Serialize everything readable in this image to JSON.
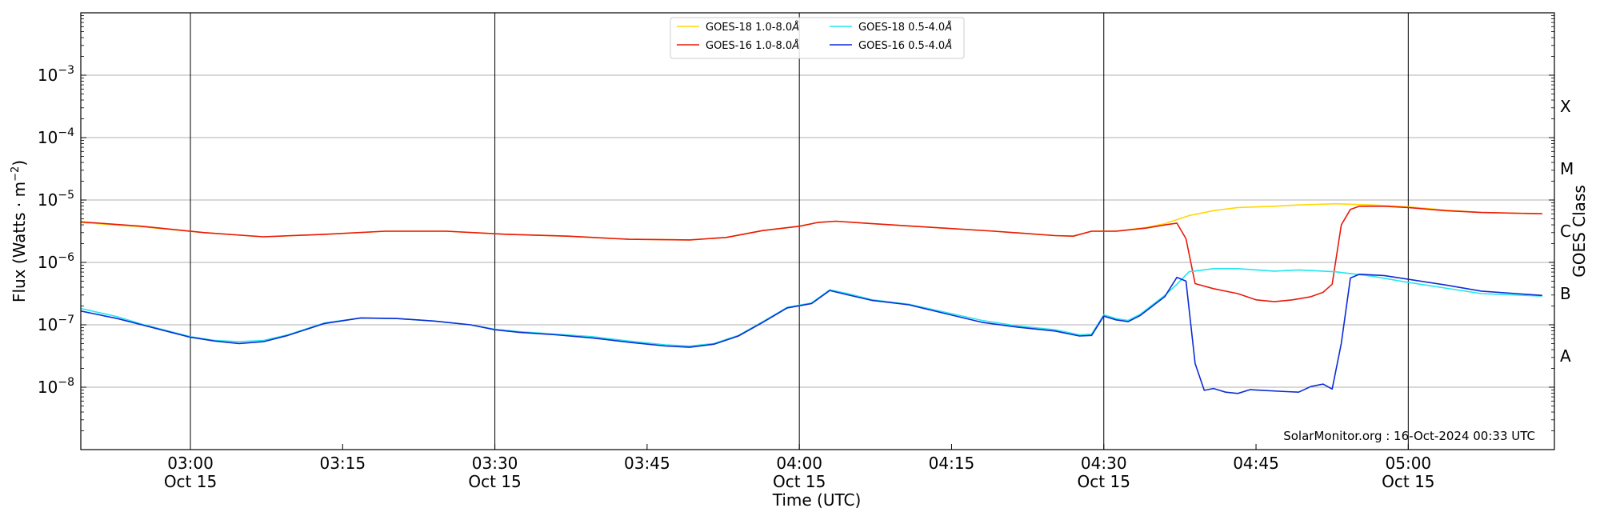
{
  "chart_data": {
    "type": "line",
    "title": "",
    "xlabel": "Time (UTC)",
    "ylabel": "Flux (Watts · m",
    "ylabel_superscript": "−2",
    "ylabel_close": ")",
    "y2label": "GOES Class",
    "yscale": "log",
    "x_unit": "minutes after 02:42 UTC, Oct 15",
    "xlim": [
      0,
      242
    ],
    "ylim_exponent": [
      -9,
      -2
    ],
    "ylim_display": [
      "1e-9",
      "1e-2"
    ],
    "grid": "horizontal at decades; vertical lines every 30 minutes",
    "legend_position": "top-center",
    "credit": "SolarMonitor.org : 16-Oct-2024 00:33 UTC",
    "x_ticks": [
      {
        "t": 18,
        "time": "03:00",
        "date": "Oct 15",
        "major": true
      },
      {
        "t": 43,
        "time": "03:15",
        "date": "",
        "major": false
      },
      {
        "t": 68,
        "time": "03:30",
        "date": "Oct 15",
        "major": true
      },
      {
        "t": 93,
        "time": "03:45",
        "date": "",
        "major": false
      },
      {
        "t": 118,
        "time": "04:00",
        "date": "Oct 15",
        "major": true
      },
      {
        "t": 143,
        "time": "04:15",
        "date": "",
        "major": false
      },
      {
        "t": 168,
        "time": "04:30",
        "date": "Oct 15",
        "major": true
      },
      {
        "t": 193,
        "time": "04:45",
        "date": "",
        "major": false
      },
      {
        "t": 218,
        "time": "05:00",
        "date": "Oct 15",
        "major": true
      }
    ],
    "y_ticks": [
      {
        "exp": -8,
        "base": "10",
        "sup": "−8"
      },
      {
        "exp": -7,
        "base": "10",
        "sup": "−7"
      },
      {
        "exp": -6,
        "base": "10",
        "sup": "−6"
      },
      {
        "exp": -5,
        "base": "10",
        "sup": "−5"
      },
      {
        "exp": -4,
        "base": "10",
        "sup": "−4"
      },
      {
        "exp": -3,
        "base": "10",
        "sup": "−3"
      }
    ],
    "goes_classes": [
      {
        "label": "A",
        "exp": -7.5
      },
      {
        "label": "B",
        "exp": -6.5
      },
      {
        "label": "C",
        "exp": -5.5
      },
      {
        "label": "M",
        "exp": -4.5
      },
      {
        "label": "X",
        "exp": -3.5
      }
    ],
    "series": [
      {
        "name": "GOES-18 1.0-8.0",
        "name_suffix": "Å",
        "color": "#ffd700",
        "points": [
          [
            0,
            -5.36
          ],
          [
            10,
            -5.43
          ],
          [
            20,
            -5.52
          ],
          [
            30,
            -5.59
          ],
          [
            40,
            -5.55
          ],
          [
            50,
            -5.5
          ],
          [
            60,
            -5.5
          ],
          [
            70,
            -5.55
          ],
          [
            80,
            -5.58
          ],
          [
            90,
            -5.63
          ],
          [
            100,
            -5.64
          ],
          [
            106,
            -5.6
          ],
          [
            112,
            -5.49
          ],
          [
            118,
            -5.42
          ],
          [
            121,
            -5.36
          ],
          [
            124,
            -5.34
          ],
          [
            130,
            -5.38
          ],
          [
            140,
            -5.44
          ],
          [
            150,
            -5.5
          ],
          [
            160,
            -5.57
          ],
          [
            163,
            -5.58
          ],
          [
            166,
            -5.5
          ],
          [
            170,
            -5.5
          ],
          [
            175,
            -5.44
          ],
          [
            178,
            -5.38
          ],
          [
            182,
            -5.25
          ],
          [
            186,
            -5.17
          ],
          [
            190,
            -5.12
          ],
          [
            196,
            -5.1
          ],
          [
            200,
            -5.08
          ],
          [
            206,
            -5.06
          ],
          [
            212,
            -5.08
          ],
          [
            218,
            -5.11
          ],
          [
            224,
            -5.16
          ],
          [
            230,
            -5.2
          ],
          [
            240,
            -5.22
          ]
        ]
      },
      {
        "name": "GOES-16 1.0-8.0",
        "name_suffix": "Å",
        "color": "#e8190c",
        "points": [
          [
            0,
            -5.35
          ],
          [
            10,
            -5.42
          ],
          [
            20,
            -5.52
          ],
          [
            30,
            -5.59
          ],
          [
            40,
            -5.55
          ],
          [
            50,
            -5.5
          ],
          [
            60,
            -5.5
          ],
          [
            70,
            -5.55
          ],
          [
            80,
            -5.58
          ],
          [
            90,
            -5.63
          ],
          [
            100,
            -5.64
          ],
          [
            106,
            -5.6
          ],
          [
            112,
            -5.49
          ],
          [
            118,
            -5.42
          ],
          [
            121,
            -5.36
          ],
          [
            124,
            -5.34
          ],
          [
            130,
            -5.38
          ],
          [
            140,
            -5.44
          ],
          [
            150,
            -5.5
          ],
          [
            160,
            -5.57
          ],
          [
            163,
            -5.58
          ],
          [
            166,
            -5.5
          ],
          [
            170,
            -5.5
          ],
          [
            175,
            -5.45
          ],
          [
            178,
            -5.4
          ],
          [
            180,
            -5.37
          ],
          [
            181.5,
            -5.62
          ],
          [
            183,
            -6.34
          ],
          [
            186,
            -6.42
          ],
          [
            190,
            -6.5
          ],
          [
            193,
            -6.6
          ],
          [
            196,
            -6.63
          ],
          [
            199,
            -6.6
          ],
          [
            202,
            -6.55
          ],
          [
            204,
            -6.48
          ],
          [
            205.5,
            -6.35
          ],
          [
            207,
            -5.4
          ],
          [
            208.5,
            -5.15
          ],
          [
            210,
            -5.1
          ],
          [
            214,
            -5.1
          ],
          [
            218,
            -5.12
          ],
          [
            224,
            -5.17
          ],
          [
            230,
            -5.2
          ],
          [
            240,
            -5.22
          ]
        ]
      },
      {
        "name": "GOES-18 0.5-4.0",
        "name_suffix": "Å",
        "color": "#22e6ee",
        "points": [
          [
            0,
            -6.74
          ],
          [
            6,
            -6.87
          ],
          [
            10,
            -6.99
          ],
          [
            14,
            -7.09
          ],
          [
            18,
            -7.19
          ],
          [
            22,
            -7.25
          ],
          [
            26,
            -7.27
          ],
          [
            30,
            -7.25
          ],
          [
            34,
            -7.16
          ],
          [
            40,
            -6.97
          ],
          [
            46,
            -6.89
          ],
          [
            52,
            -6.9
          ],
          [
            58,
            -6.94
          ],
          [
            64,
            -7.0
          ],
          [
            68,
            -7.07
          ],
          [
            72,
            -7.11
          ],
          [
            78,
            -7.15
          ],
          [
            84,
            -7.19
          ],
          [
            90,
            -7.26
          ],
          [
            96,
            -7.32
          ],
          [
            100,
            -7.34
          ],
          [
            104,
            -7.3
          ],
          [
            108,
            -7.17
          ],
          [
            112,
            -6.95
          ],
          [
            116,
            -6.72
          ],
          [
            120,
            -6.65
          ],
          [
            123,
            -6.44
          ],
          [
            126,
            -6.5
          ],
          [
            130,
            -6.6
          ],
          [
            136,
            -6.67
          ],
          [
            142,
            -6.8
          ],
          [
            148,
            -6.93
          ],
          [
            154,
            -7.02
          ],
          [
            160,
            -7.08
          ],
          [
            164,
            -7.16
          ],
          [
            166,
            -7.15
          ],
          [
            168,
            -6.84
          ],
          [
            170,
            -6.9
          ],
          [
            172,
            -6.93
          ],
          [
            174,
            -6.83
          ],
          [
            176,
            -6.68
          ],
          [
            178,
            -6.53
          ],
          [
            180,
            -6.35
          ],
          [
            182,
            -6.15
          ],
          [
            186,
            -6.1
          ],
          [
            190,
            -6.1
          ],
          [
            196,
            -6.14
          ],
          [
            200,
            -6.12
          ],
          [
            206,
            -6.15
          ],
          [
            212,
            -6.22
          ],
          [
            218,
            -6.32
          ],
          [
            224,
            -6.41
          ],
          [
            230,
            -6.5
          ],
          [
            240,
            -6.54
          ]
        ]
      },
      {
        "name": "GOES-16 0.5-4.0",
        "name_suffix": "Å",
        "color": "#0d2bd6",
        "points": [
          [
            0,
            -6.78
          ],
          [
            6,
            -6.9
          ],
          [
            10,
            -7.0
          ],
          [
            14,
            -7.1
          ],
          [
            18,
            -7.2
          ],
          [
            22,
            -7.26
          ],
          [
            26,
            -7.3
          ],
          [
            30,
            -7.27
          ],
          [
            34,
            -7.17
          ],
          [
            40,
            -6.98
          ],
          [
            46,
            -6.89
          ],
          [
            52,
            -6.9
          ],
          [
            58,
            -6.94
          ],
          [
            64,
            -7.0
          ],
          [
            68,
            -7.08
          ],
          [
            72,
            -7.12
          ],
          [
            78,
            -7.16
          ],
          [
            84,
            -7.21
          ],
          [
            90,
            -7.28
          ],
          [
            96,
            -7.34
          ],
          [
            100,
            -7.36
          ],
          [
            104,
            -7.31
          ],
          [
            108,
            -7.18
          ],
          [
            112,
            -6.96
          ],
          [
            116,
            -6.73
          ],
          [
            120,
            -6.66
          ],
          [
            123,
            -6.45
          ],
          [
            126,
            -6.52
          ],
          [
            130,
            -6.61
          ],
          [
            136,
            -6.68
          ],
          [
            142,
            -6.82
          ],
          [
            148,
            -6.96
          ],
          [
            154,
            -7.04
          ],
          [
            160,
            -7.1
          ],
          [
            164,
            -7.18
          ],
          [
            166,
            -7.17
          ],
          [
            168,
            -6.86
          ],
          [
            170,
            -6.92
          ],
          [
            172,
            -6.95
          ],
          [
            174,
            -6.85
          ],
          [
            176,
            -6.7
          ],
          [
            178,
            -6.55
          ],
          [
            180,
            -6.24
          ],
          [
            181.5,
            -6.3
          ],
          [
            183,
            -7.62
          ],
          [
            184.5,
            -8.05
          ],
          [
            186,
            -8.02
          ],
          [
            188,
            -8.08
          ],
          [
            190,
            -8.1
          ],
          [
            192,
            -8.04
          ],
          [
            194,
            -8.05
          ],
          [
            198,
            -8.07
          ],
          [
            200,
            -8.08
          ],
          [
            202,
            -7.99
          ],
          [
            204,
            -7.95
          ],
          [
            205.5,
            -8.03
          ],
          [
            207,
            -7.3
          ],
          [
            208.5,
            -6.25
          ],
          [
            210,
            -6.19
          ],
          [
            214,
            -6.21
          ],
          [
            218,
            -6.27
          ],
          [
            224,
            -6.36
          ],
          [
            230,
            -6.46
          ],
          [
            240,
            -6.53
          ]
        ]
      }
    ]
  }
}
